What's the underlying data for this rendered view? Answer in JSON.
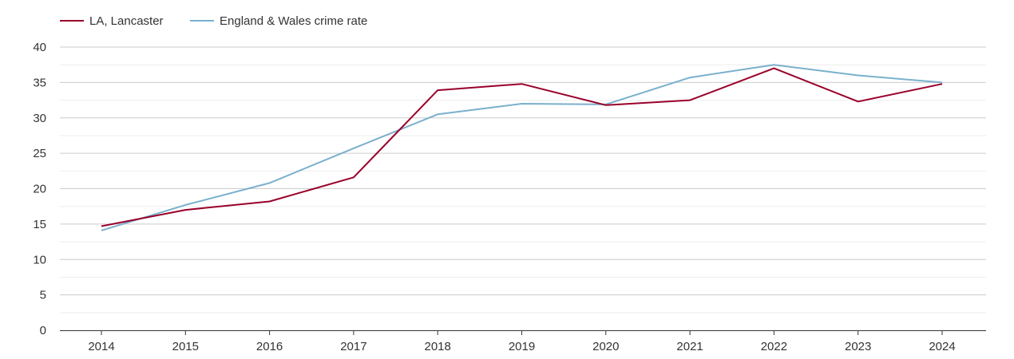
{
  "chart_data": {
    "type": "line",
    "title": "",
    "xlabel": "",
    "ylabel": "",
    "x": [
      "2014",
      "2015",
      "2016",
      "2017",
      "2018",
      "2019",
      "2020",
      "2021",
      "2022",
      "2023",
      "2024"
    ],
    "ylim": [
      0,
      40
    ],
    "yticks": [
      "0",
      "5",
      "10",
      "15",
      "20",
      "25",
      "30",
      "35",
      "40"
    ],
    "grid": true,
    "legend": "top-left",
    "series": [
      {
        "name": "LA, Lancaster",
        "color": "#99002a",
        "values": [
          14.7,
          17.0,
          18.2,
          21.6,
          33.9,
          34.8,
          31.8,
          32.5,
          37.0,
          32.3,
          34.8
        ]
      },
      {
        "name": "England & Wales crime rate",
        "color": "#7ab0cc",
        "values": [
          14.1,
          17.7,
          20.8,
          25.7,
          30.5,
          32.0,
          31.9,
          35.7,
          37.5,
          36.0,
          35.0
        ]
      }
    ]
  }
}
